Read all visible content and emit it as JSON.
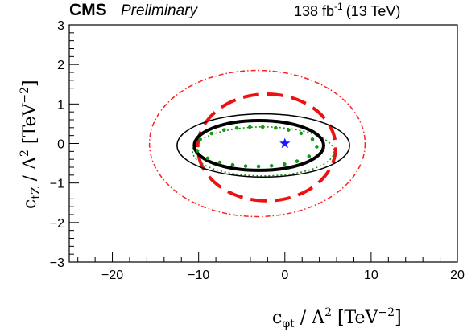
{
  "chart_data": {
    "type": "contour",
    "experiment": "CMS",
    "status": "Preliminary",
    "luminosity": "138 fb",
    "luminosity_exp": "-1",
    "energy": "(13 TeV)",
    "xlabel": {
      "main": "c",
      "sub": "φt",
      "rest": " / Λ",
      "sq": "2",
      "unit": " [TeV",
      "unit_exp": "−2",
      "close": "]"
    },
    "ylabel": {
      "main": "c",
      "sub": "tZ",
      "rest": " / Λ",
      "sq": "2",
      "unit": " [TeV",
      "unit_exp": "−2",
      "close": "]"
    },
    "xlim": [
      -25,
      20
    ],
    "ylim": [
      -3,
      3
    ],
    "x_ticks": [
      -20,
      -10,
      0,
      10,
      20
    ],
    "x_tick_labels": [
      "−20",
      "−10",
      "0",
      "10",
      "20"
    ],
    "y_ticks": [
      -3,
      -2,
      -1,
      0,
      1,
      2,
      3
    ],
    "y_tick_labels": [
      "−3",
      "−2",
      "−1",
      "0",
      "1",
      "2",
      "3"
    ],
    "best_fit": {
      "x": 0.0,
      "y": 0.0,
      "color": "#1a1aff",
      "marker": "star"
    },
    "contours": [
      {
        "id": "red-dashdot-outer",
        "color": "#ff2020",
        "style": "dashdot",
        "width": 1.5,
        "cx": -3.2,
        "cy": 0.0,
        "rx": 12.5,
        "ry": 1.85
      },
      {
        "id": "red-dashed",
        "color": "#ee1111",
        "style": "dashed",
        "width": 4,
        "cx": -2.1,
        "cy": -0.1,
        "rx": 8.0,
        "ry": 1.35
      },
      {
        "id": "black-solid-outer",
        "color": "#000000",
        "style": "solid",
        "width": 1.5,
        "cx": -2.5,
        "cy": -0.05,
        "rx": 10.0,
        "ry": 0.8
      },
      {
        "id": "green-dotted-outer",
        "color": "#118811",
        "style": "dotted",
        "width": 1.5,
        "cx": -2.5,
        "cy": -0.2,
        "rx": 8.2,
        "ry": 0.62
      },
      {
        "id": "black-solid-inner",
        "color": "#000000",
        "style": "solid",
        "width": 4,
        "cx": -3.0,
        "cy": -0.05,
        "rx": 7.5,
        "ry": 0.63
      },
      {
        "id": "green-dotted-inner",
        "color": "#119911",
        "style": "bigdot",
        "width": 4.5,
        "cx": -3.3,
        "cy": -0.08,
        "rx": 7.0,
        "ry": 0.5
      }
    ]
  }
}
